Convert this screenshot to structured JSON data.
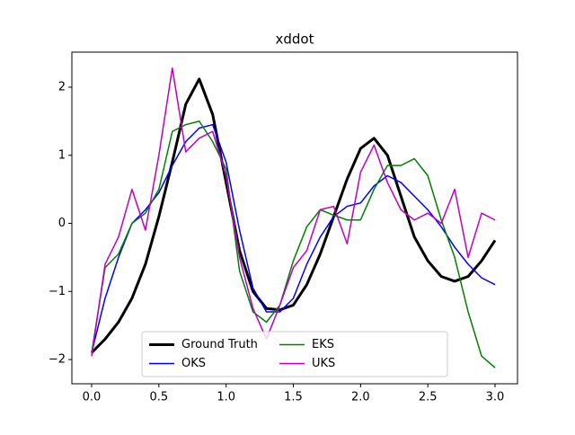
{
  "chart_data": {
    "type": "line",
    "title": "xddot",
    "x": [
      0,
      0.1,
      0.2,
      0.3,
      0.4,
      0.5,
      0.6,
      0.7,
      0.8,
      0.9,
      1.0,
      1.1,
      1.2,
      1.3,
      1.4,
      1.5,
      1.6,
      1.7,
      1.8,
      1.9,
      2.0,
      2.1,
      2.2,
      2.3,
      2.4,
      2.5,
      2.6,
      2.7,
      2.8,
      2.9,
      3.0
    ],
    "series": [
      {
        "name": "Ground Truth",
        "color": "#000000",
        "width": 3,
        "values": [
          -1.9,
          -1.7,
          -1.45,
          -1.1,
          -0.6,
          0.1,
          0.9,
          1.75,
          2.12,
          1.6,
          0.6,
          -0.4,
          -1.0,
          -1.25,
          -1.27,
          -1.2,
          -0.9,
          -0.45,
          0.1,
          0.65,
          1.1,
          1.25,
          1.0,
          0.4,
          -0.2,
          -0.55,
          -0.78,
          -0.85,
          -0.78,
          -0.55,
          -0.25
        ]
      },
      {
        "name": "OKS",
        "color": "#0000ff",
        "width": 1.5,
        "values": [
          -1.9,
          -1.1,
          -0.5,
          0.0,
          0.2,
          0.45,
          0.85,
          1.2,
          1.4,
          1.45,
          0.9,
          -0.1,
          -0.95,
          -1.3,
          -1.3,
          -1.1,
          -0.6,
          -0.2,
          0.1,
          0.25,
          0.3,
          0.55,
          0.7,
          0.6,
          0.4,
          0.2,
          -0.05,
          -0.35,
          -0.6,
          -0.8,
          -0.9
        ]
      },
      {
        "name": "EKS",
        "color": "#008000",
        "width": 1.5,
        "values": [
          -1.9,
          -0.65,
          -0.45,
          0.0,
          0.15,
          0.5,
          1.35,
          1.45,
          1.5,
          1.2,
          0.8,
          -0.7,
          -1.3,
          -1.45,
          -1.2,
          -0.55,
          -0.05,
          0.2,
          0.12,
          0.05,
          0.05,
          0.5,
          0.85,
          0.85,
          0.95,
          0.7,
          0.05,
          -0.5,
          -1.3,
          -1.95,
          -2.12
        ]
      },
      {
        "name": "UKS",
        "color": "#bf00bf",
        "width": 1.5,
        "values": [
          -1.95,
          -0.6,
          -0.2,
          0.5,
          -0.1,
          1.0,
          2.28,
          1.05,
          1.25,
          1.35,
          0.7,
          -0.5,
          -1.25,
          -1.7,
          -1.2,
          -0.65,
          -0.4,
          0.2,
          0.25,
          -0.3,
          0.75,
          1.15,
          0.6,
          0.2,
          0.05,
          0.15,
          0.0,
          0.5,
          -0.5,
          0.15,
          0.05
        ]
      }
    ],
    "xlim": [
      -0.147,
      3.167
    ],
    "ylim": [
      -2.356,
      2.515
    ],
    "xticks": [
      {
        "value": 0,
        "label": "0.0"
      },
      0.5,
      {
        "value": 1,
        "label": "1.0"
      },
      1.5,
      {
        "value": 2,
        "label": "2.0"
      },
      2.5,
      {
        "value": 3,
        "label": "3.0"
      }
    ],
    "yticks": [
      {
        "value": -2,
        "label": "−2"
      },
      {
        "value": -1,
        "label": "−1"
      },
      0,
      1,
      2
    ],
    "legend": "lower center",
    "legend_columns": 3
  }
}
